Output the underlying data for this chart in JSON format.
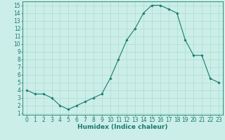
{
  "x": [
    0,
    1,
    2,
    3,
    4,
    5,
    6,
    7,
    8,
    9,
    10,
    11,
    12,
    13,
    14,
    15,
    16,
    17,
    18,
    19,
    20,
    21,
    22,
    23
  ],
  "y": [
    4.0,
    3.5,
    3.5,
    3.0,
    2.0,
    1.5,
    2.0,
    2.5,
    3.0,
    3.5,
    5.5,
    8.0,
    10.5,
    12.0,
    14.0,
    15.0,
    15.0,
    14.5,
    14.0,
    10.5,
    8.5,
    8.5,
    5.5,
    5.0
  ],
  "line_color": "#1a7a6e",
  "marker": "D",
  "marker_size": 1.8,
  "linewidth": 0.8,
  "xlabel": "Humidex (Indice chaleur)",
  "xlim": [
    -0.5,
    23.5
  ],
  "ylim": [
    0.8,
    15.5
  ],
  "yticks": [
    1,
    2,
    3,
    4,
    5,
    6,
    7,
    8,
    9,
    10,
    11,
    12,
    13,
    14,
    15
  ],
  "xticks": [
    0,
    1,
    2,
    3,
    4,
    5,
    6,
    7,
    8,
    9,
    10,
    11,
    12,
    13,
    14,
    15,
    16,
    17,
    18,
    19,
    20,
    21,
    22,
    23
  ],
  "bg_color": "#cceee8",
  "grid_color": "#aaddcc",
  "tick_label_size": 5.5,
  "xlabel_size": 6.5
}
